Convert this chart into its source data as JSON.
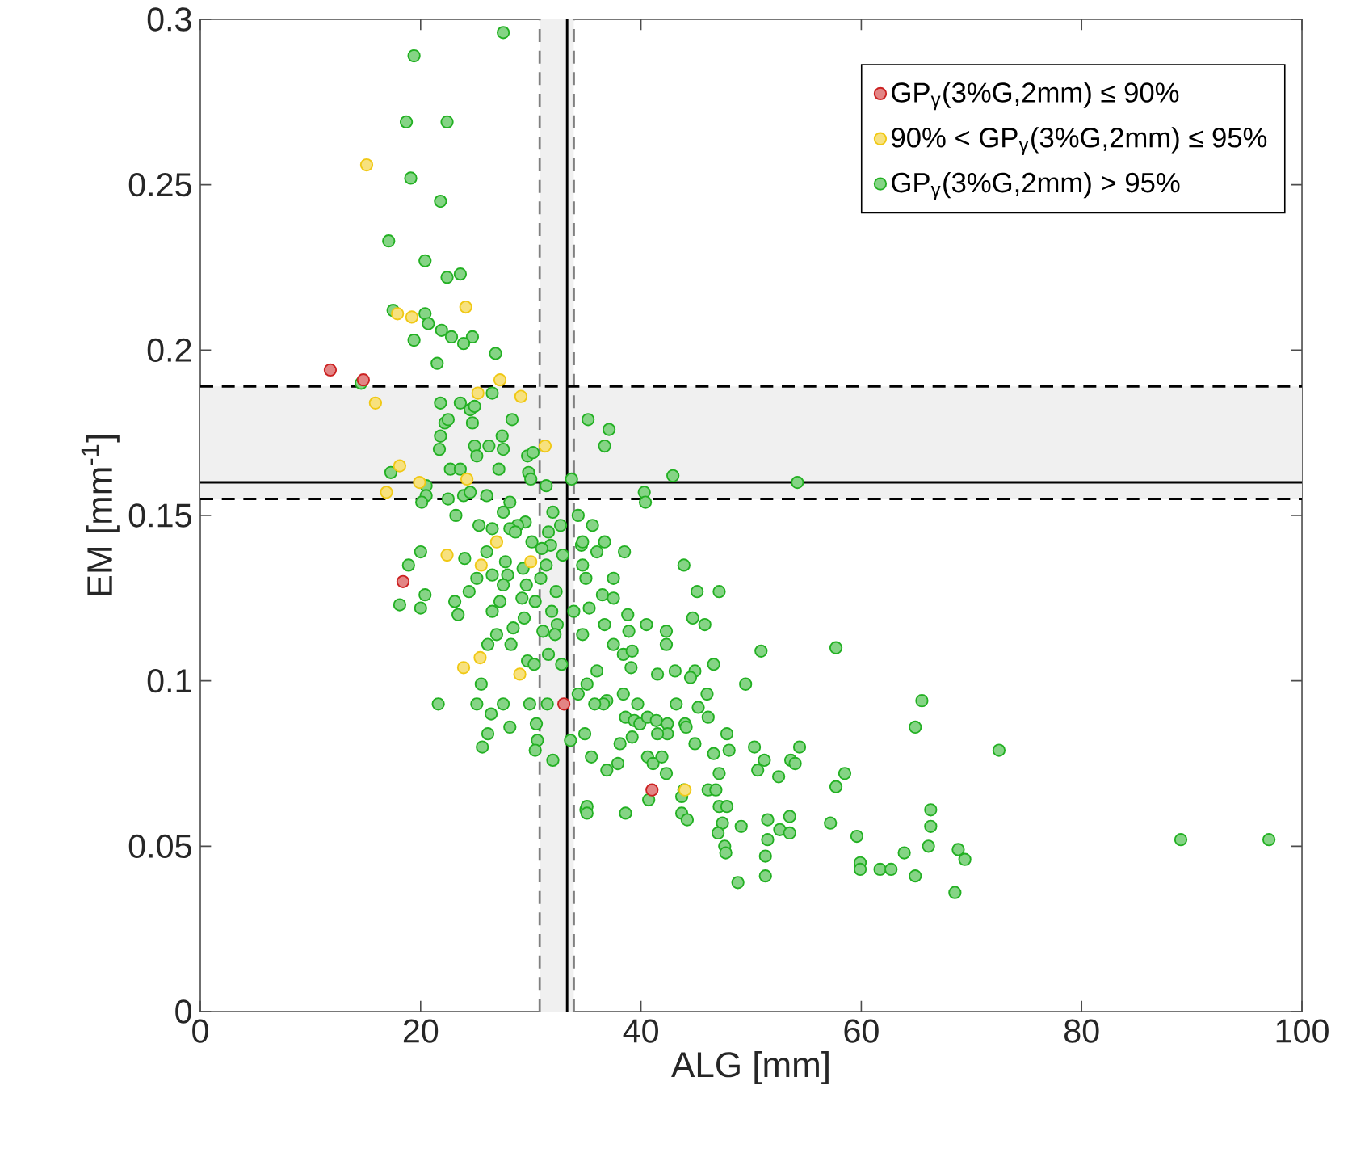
{
  "chart_data": {
    "type": "scatter",
    "xlabel": "ALG [mm]",
    "ylabel": "EM [mm$^{-1}$]",
    "xlim": [
      0,
      100
    ],
    "ylim": [
      0,
      0.3
    ],
    "xticks": [
      0,
      20,
      40,
      60,
      80,
      100
    ],
    "yticks": [
      0,
      0.05,
      0.1,
      0.15,
      0.2,
      0.25,
      0.3
    ],
    "grid": false,
    "legend": "top right",
    "marker": "circle",
    "bands": [
      {
        "axis": "x",
        "from": 30.8,
        "to": 33.9,
        "color": "#f0f0f0"
      },
      {
        "axis": "y",
        "from": 0.155,
        "to": 0.189,
        "color": "#f0f0f0"
      }
    ],
    "ref_lines": [
      {
        "axis": "x",
        "value": 33.3,
        "color": "#000000",
        "line_style": "solid"
      },
      {
        "axis": "x",
        "value": 30.8,
        "color": "#808080",
        "line_style": "dashed"
      },
      {
        "axis": "x",
        "value": 33.9,
        "color": "#808080",
        "line_style": "dashed"
      },
      {
        "axis": "y",
        "value": 0.16,
        "color": "#000000",
        "line_style": "solid"
      },
      {
        "axis": "y",
        "value": 0.155,
        "color": "#000000",
        "line_style": "dashed"
      },
      {
        "axis": "y",
        "value": 0.189,
        "color": "#000000",
        "line_style": "dashed"
      }
    ],
    "series": [
      {
        "name": "GP$_{γ}$(3%G,2mm) ≤ 90%",
        "color": "#cc2222",
        "x": [
          11.8,
          14.8,
          18.4,
          33.0,
          41.0
        ],
        "values": [
          0.194,
          0.191,
          0.13,
          0.093,
          0.067
        ]
      },
      {
        "name": "90% < GP$_{γ}$(3%G,2mm) ≤ 95%",
        "color": "#f0c814",
        "x": [
          15.1,
          24.1,
          17.9,
          19.2,
          15.9,
          18.1,
          16.9,
          19.9,
          24.2,
          25.2,
          27.2,
          29.1,
          31.3,
          26.9,
          22.4,
          25.5,
          30.0,
          23.9,
          25.4,
          29.0,
          44.0
        ],
        "values": [
          0.256,
          0.213,
          0.211,
          0.21,
          0.184,
          0.165,
          0.157,
          0.16,
          0.161,
          0.187,
          0.191,
          0.186,
          0.171,
          0.142,
          0.138,
          0.135,
          0.136,
          0.104,
          0.107,
          0.102,
          0.067
        ]
      },
      {
        "name": "GP$_{γ}$(3%G,2mm) > 95%",
        "color": "#22b022",
        "x": [
          27.5,
          19.4,
          18.7,
          22.4,
          19.1,
          21.8,
          17.1,
          20.4,
          22.4,
          23.6,
          17.5,
          20.4,
          20.7,
          21.9,
          22.8,
          24.7,
          23.9,
          19.4,
          26.8,
          21.5,
          14.6,
          21.8,
          23.6,
          24.5,
          24.9,
          26.5,
          28.3,
          24.7,
          22.2,
          22.5,
          21.8,
          21.7,
          24.9,
          26.2,
          27.4,
          27.5,
          25.1,
          29.7,
          30.2,
          22.7,
          23.6,
          27.1,
          17.3,
          29.8,
          30.0,
          31.4,
          33.7,
          20.5,
          20.5,
          20.1,
          22.5,
          23.9,
          24.5,
          26.0,
          28.1,
          23.2,
          27.5,
          29.5,
          28.8,
          25.3,
          26.5,
          28.1,
          32.0,
          32.7,
          31.6,
          28.6,
          30.1,
          31.8,
          31.0,
          32.9,
          34.6,
          20.0,
          18.9,
          24.0,
          26.0,
          27.7,
          29.3,
          31.4,
          25.1,
          26.5,
          27.9,
          29.6,
          30.9,
          32.3,
          24.4,
          27.5,
          20.4,
          18.1,
          20.0,
          23.1,
          23.4,
          26.5,
          27.2,
          29.2,
          29.4,
          30.4,
          31.9,
          33.9,
          32.4,
          31.1,
          32.2,
          26.9,
          28.4,
          26.1,
          28.2,
          31.6,
          29.7,
          32.8,
          30.3,
          25.5,
          34.3,
          31.5,
          29.9,
          27.5,
          25.1,
          21.6,
          26.4,
          26.1,
          25.6,
          28.1,
          30.5,
          30.6,
          30.4,
          32.0,
          33.6,
          34.9,
          35.0,
          42.9,
          54.2,
          40.3,
          40.4,
          34.3,
          35.6,
          36.7,
          34.7,
          36.0,
          38.5,
          34.7,
          43.9,
          37.5,
          35.0,
          36.5,
          37.5,
          45.1,
          47.1,
          35.3,
          38.8,
          44.7,
          45.8,
          40.5,
          36.7,
          38.9,
          34.7,
          42.3,
          42.3,
          37.5,
          38.4,
          39.2,
          50.9,
          57.7,
          39.1,
          41.5,
          43.1,
          44.9,
          44.5,
          46.6,
          49.5,
          36.0,
          35.1,
          38.4,
          46.0,
          43.2,
          45.2,
          36.9,
          36.6,
          35.8,
          39.7,
          38.6,
          39.4,
          39.9,
          40.6,
          41.4,
          42.4,
          42.4,
          41.5,
          39.2,
          38.1,
          44.0,
          44.1,
          46.1,
          44.9,
          47.8,
          46.6,
          48.0,
          50.3,
          54.4,
          53.6,
          54.0,
          51.2,
          50.6,
          52.5,
          47.1,
          40.6,
          41.1,
          41.9,
          42.3,
          35.5,
          36.9,
          37.9,
          58.5,
          57.7,
          65.5,
          64.9,
          46.1,
          46.8,
          43.9,
          43.7,
          40.7,
          38.6,
          35.1,
          35.1,
          47.1,
          47.8,
          43.7,
          44.2,
          47.4,
          47.0,
          49.1,
          51.5,
          51.5,
          52.6,
          53.5,
          53.5,
          57.2,
          59.6,
          47.6,
          47.7,
          51.3,
          48.8,
          51.3,
          59.9,
          59.9,
          61.7,
          62.7,
          63.9,
          64.9,
          66.1,
          66.3,
          66.3,
          72.5,
          68.8,
          69.4,
          68.5,
          89.0,
          97.0,
          35.2,
          37.1,
          36.7
        ],
        "values": [
          0.296,
          0.289,
          0.269,
          0.269,
          0.252,
          0.245,
          0.233,
          0.227,
          0.222,
          0.223,
          0.212,
          0.211,
          0.208,
          0.206,
          0.204,
          0.204,
          0.202,
          0.203,
          0.199,
          0.196,
          0.19,
          0.184,
          0.184,
          0.182,
          0.183,
          0.187,
          0.179,
          0.178,
          0.178,
          0.179,
          0.174,
          0.17,
          0.171,
          0.171,
          0.174,
          0.17,
          0.168,
          0.168,
          0.169,
          0.164,
          0.164,
          0.164,
          0.163,
          0.163,
          0.161,
          0.159,
          0.161,
          0.159,
          0.156,
          0.154,
          0.155,
          0.156,
          0.157,
          0.156,
          0.154,
          0.15,
          0.151,
          0.148,
          0.147,
          0.147,
          0.146,
          0.146,
          0.151,
          0.147,
          0.145,
          0.145,
          0.142,
          0.141,
          0.14,
          0.138,
          0.141,
          0.139,
          0.135,
          0.137,
          0.139,
          0.136,
          0.134,
          0.135,
          0.131,
          0.132,
          0.132,
          0.129,
          0.131,
          0.127,
          0.127,
          0.129,
          0.126,
          0.123,
          0.122,
          0.124,
          0.12,
          0.121,
          0.124,
          0.125,
          0.119,
          0.124,
          0.121,
          0.121,
          0.117,
          0.115,
          0.114,
          0.114,
          0.116,
          0.111,
          0.111,
          0.108,
          0.106,
          0.105,
          0.105,
          0.099,
          0.096,
          0.093,
          0.093,
          0.093,
          0.093,
          0.093,
          0.09,
          0.084,
          0.08,
          0.086,
          0.087,
          0.082,
          0.079,
          0.076,
          0.082,
          0.084,
          0.061,
          0.162,
          0.16,
          0.157,
          0.154,
          0.15,
          0.147,
          0.142,
          0.142,
          0.139,
          0.139,
          0.135,
          0.135,
          0.131,
          0.131,
          0.126,
          0.125,
          0.127,
          0.127,
          0.122,
          0.12,
          0.119,
          0.117,
          0.117,
          0.117,
          0.115,
          0.114,
          0.115,
          0.111,
          0.111,
          0.108,
          0.109,
          0.109,
          0.11,
          0.104,
          0.102,
          0.103,
          0.103,
          0.101,
          0.105,
          0.099,
          0.103,
          0.099,
          0.096,
          0.096,
          0.093,
          0.092,
          0.094,
          0.093,
          0.093,
          0.093,
          0.089,
          0.088,
          0.087,
          0.089,
          0.088,
          0.087,
          0.084,
          0.084,
          0.083,
          0.081,
          0.087,
          0.086,
          0.089,
          0.081,
          0.084,
          0.078,
          0.079,
          0.08,
          0.08,
          0.076,
          0.075,
          0.076,
          0.073,
          0.071,
          0.072,
          0.077,
          0.075,
          0.077,
          0.072,
          0.077,
          0.073,
          0.075,
          0.072,
          0.068,
          0.094,
          0.086,
          0.067,
          0.067,
          0.067,
          0.065,
          0.064,
          0.06,
          0.062,
          0.06,
          0.062,
          0.062,
          0.06,
          0.058,
          0.057,
          0.054,
          0.056,
          0.058,
          0.052,
          0.055,
          0.059,
          0.054,
          0.057,
          0.053,
          0.05,
          0.048,
          0.047,
          0.039,
          0.041,
          0.045,
          0.043,
          0.043,
          0.043,
          0.048,
          0.041,
          0.05,
          0.056,
          0.061,
          0.079,
          0.049,
          0.046,
          0.036,
          0.052,
          0.052,
          0.179,
          0.176,
          0.171
        ]
      }
    ]
  }
}
